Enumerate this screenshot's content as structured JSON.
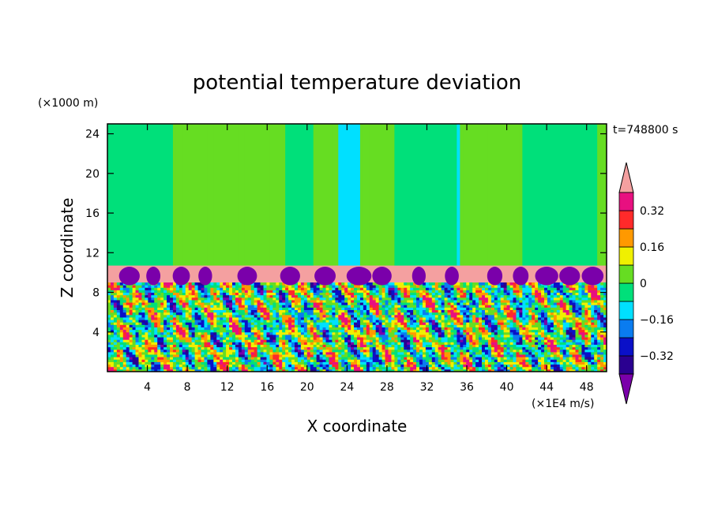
{
  "chart_data": {
    "type": "heatmap",
    "title": "potential temperature deviation",
    "xlabel": "X coordinate",
    "ylabel": "Z coordinate",
    "x_unit": "(×1E4 m/s)",
    "y_unit": "(×1000 m)",
    "time_label": "t=748800 s",
    "x_ticks": [
      4,
      8,
      12,
      16,
      20,
      24,
      28,
      32,
      36,
      40,
      44,
      48
    ],
    "y_ticks": [
      4,
      8,
      12,
      16,
      20,
      24
    ],
    "xlim": [
      0,
      50
    ],
    "ylim": [
      0,
      25
    ],
    "grid": false,
    "colorbar": {
      "tick_labels": [
        "0.32",
        "0.16",
        "0",
        "-0.16",
        "-0.32"
      ],
      "levels": [
        -0.4,
        -0.32,
        -0.24,
        -0.16,
        -0.08,
        0,
        0.08,
        0.16,
        0.24,
        0.32,
        0.4
      ],
      "colors": {
        "under": "#7a00aa",
        "bands": [
          "#2a0090",
          "#0a10c8",
          "#0a7cf0",
          "#00e0ff",
          "#00e07a",
          "#66dd22",
          "#f0f000",
          "#ff9900",
          "#ff2a2a",
          "#e81080"
        ],
        "over": "#f4a0a0"
      },
      "extend": "both",
      "location": "right"
    },
    "regions": {
      "upper_layer": {
        "z_range": [
          10.7,
          25
        ],
        "dominant_values": [
          -0.08,
          0.08
        ]
      },
      "inversion_layer": {
        "z_range": [
          9,
          10.7
        ],
        "value": "above 0.4",
        "embedded_value": "below -0.4"
      },
      "lower_layer": {
        "z_range": [
          0,
          9
        ],
        "value_range": [
          -0.4,
          0.4
        ]
      }
    }
  }
}
